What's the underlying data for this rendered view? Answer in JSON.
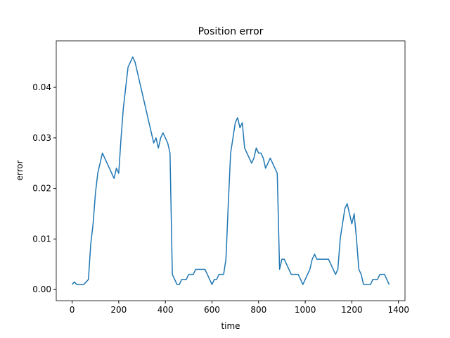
{
  "chart_data": {
    "type": "line",
    "title": "Position error",
    "x_label": "time",
    "y_label": "error",
    "x": [
      0,
      10,
      20,
      30,
      40,
      50,
      60,
      70,
      80,
      90,
      100,
      110,
      120,
      130,
      140,
      150,
      160,
      170,
      180,
      190,
      200,
      210,
      220,
      230,
      240,
      250,
      260,
      270,
      280,
      290,
      300,
      310,
      320,
      330,
      340,
      350,
      360,
      370,
      380,
      390,
      400,
      410,
      420,
      430,
      440,
      450,
      460,
      470,
      480,
      490,
      500,
      510,
      520,
      530,
      540,
      550,
      560,
      570,
      580,
      590,
      600,
      610,
      620,
      630,
      640,
      650,
      660,
      670,
      680,
      690,
      700,
      710,
      720,
      730,
      740,
      750,
      760,
      770,
      780,
      790,
      800,
      810,
      820,
      830,
      840,
      850,
      860,
      870,
      880,
      890,
      900,
      910,
      920,
      930,
      940,
      950,
      960,
      970,
      980,
      990,
      1000,
      1010,
      1020,
      1030,
      1040,
      1050,
      1060,
      1070,
      1080,
      1090,
      1100,
      1110,
      1120,
      1130,
      1140,
      1150,
      1160,
      1170,
      1180,
      1190,
      1200,
      1210,
      1220,
      1230,
      1240,
      1250,
      1260,
      1270,
      1280,
      1290,
      1300,
      1310,
      1320,
      1330,
      1340,
      1350,
      1360
    ],
    "series": [
      {
        "name": "error",
        "color": "#1f77b4",
        "values": [
          0.001,
          0.0015,
          0.001,
          0.001,
          0.001,
          0.001,
          0.0015,
          0.002,
          0.009,
          0.013,
          0.019,
          0.023,
          0.025,
          0.027,
          0.026,
          0.025,
          0.024,
          0.023,
          0.022,
          0.024,
          0.023,
          0.03,
          0.036,
          0.04,
          0.044,
          0.045,
          0.046,
          0.045,
          0.043,
          0.041,
          0.039,
          0.037,
          0.035,
          0.033,
          0.031,
          0.029,
          0.03,
          0.028,
          0.03,
          0.031,
          0.03,
          0.029,
          0.027,
          0.003,
          0.002,
          0.001,
          0.001,
          0.002,
          0.002,
          0.002,
          0.003,
          0.003,
          0.003,
          0.004,
          0.004,
          0.004,
          0.004,
          0.004,
          0.003,
          0.002,
          0.001,
          0.002,
          0.002,
          0.003,
          0.003,
          0.003,
          0.006,
          0.017,
          0.027,
          0.03,
          0.033,
          0.034,
          0.032,
          0.033,
          0.028,
          0.027,
          0.026,
          0.025,
          0.026,
          0.028,
          0.027,
          0.027,
          0.026,
          0.024,
          0.025,
          0.026,
          0.025,
          0.024,
          0.023,
          0.004,
          0.006,
          0.006,
          0.005,
          0.004,
          0.003,
          0.003,
          0.003,
          0.003,
          0.002,
          0.001,
          0.002,
          0.003,
          0.004,
          0.006,
          0.007,
          0.006,
          0.006,
          0.006,
          0.006,
          0.006,
          0.006,
          0.005,
          0.004,
          0.003,
          0.004,
          0.01,
          0.013,
          0.016,
          0.017,
          0.015,
          0.013,
          0.015,
          0.01,
          0.004,
          0.003,
          0.001,
          0.001,
          0.001,
          0.001,
          0.002,
          0.002,
          0.002,
          0.003,
          0.003,
          0.003,
          0.002,
          0.001
        ]
      }
    ],
    "xlim": [
      -68,
      1428
    ],
    "ylim": [
      -0.0022,
      0.0492
    ],
    "xticks": [
      0,
      200,
      400,
      600,
      800,
      1000,
      1200,
      1400
    ],
    "yticks": [
      {
        "value": 0,
        "label": "0.00"
      },
      {
        "value": 0.01,
        "label": "0.01"
      },
      {
        "value": 0.02,
        "label": "0.02"
      },
      {
        "value": 0.03,
        "label": "0.03"
      },
      {
        "value": 0.04,
        "label": "0.04"
      }
    ]
  }
}
